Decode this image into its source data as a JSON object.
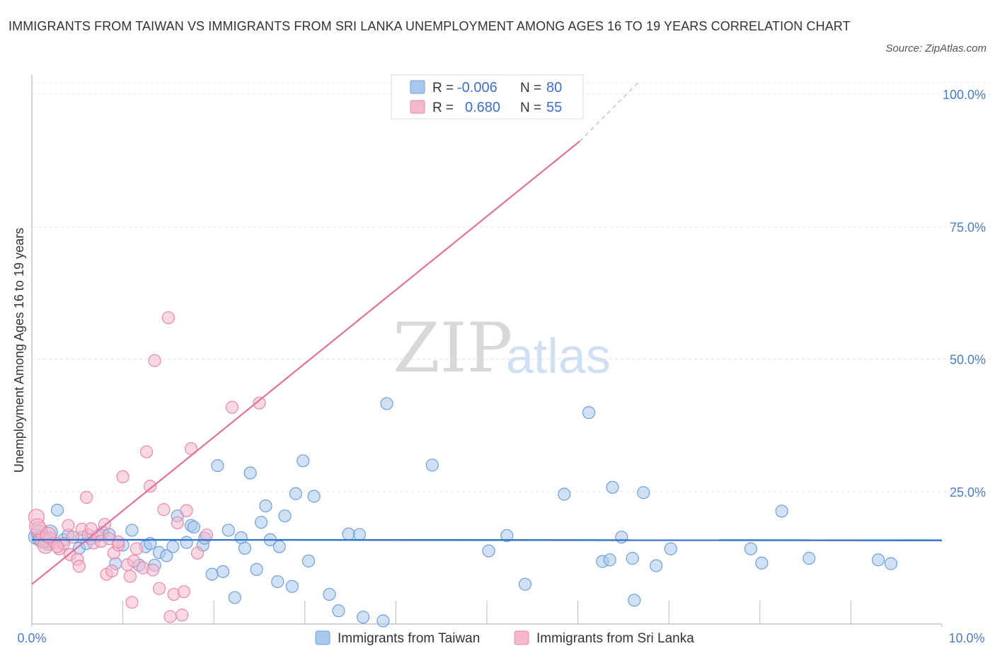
{
  "title": "IMMIGRANTS FROM TAIWAN VS IMMIGRANTS FROM SRI LANKA UNEMPLOYMENT AMONG AGES 16 TO 19 YEARS CORRELATION CHART",
  "source": "Source: ZipAtlas.com",
  "watermark": {
    "zip": "ZIP",
    "atlas": "atlas"
  },
  "colors": {
    "taiwan_fill": "#a9c8ee",
    "taiwan_stroke": "#6f9fd8",
    "taiwan_line": "#2f72c9",
    "srilanka_fill": "#f5b8cc",
    "srilanka_stroke": "#e888a8",
    "srilanka_line": "#e0709a",
    "grid": "#e3e3e3",
    "tick": "#4a7cc7"
  },
  "legend": {
    "rows": [
      {
        "r_label": "R =",
        "r_value": "-0.006",
        "n_label": "N =",
        "n_value": "80"
      },
      {
        "r_label": "R =",
        "r_value": "0.680",
        "n_label": "N =",
        "n_value": "55"
      }
    ]
  },
  "chart_data": {
    "type": "scatter",
    "title": "IMMIGRANTS FROM TAIWAN VS IMMIGRANTS FROM SRI LANKA UNEMPLOYMENT AMONG AGES 16 TO 19 YEARS CORRELATION CHART",
    "xlabel": "",
    "ylabel": "Unemployment Among Ages 16 to 19 years",
    "xlim": [
      0,
      10
    ],
    "ylim": [
      0,
      100
    ],
    "x_tick_labels": [
      "0.0%",
      "10.0%"
    ],
    "y_ticks": [
      25,
      50,
      75,
      100
    ],
    "y_tick_labels": [
      "25.0%",
      "50.0%",
      "75.0%",
      "100.0%"
    ],
    "grid": true,
    "legend_position": "top-center",
    "series": [
      {
        "name": "Immigrants from Taiwan",
        "R": -0.006,
        "N": 80,
        "trend": {
          "x0": 0,
          "y0": 15.9,
          "x1": 10,
          "y1": 15.8
        },
        "points": [
          [
            0.05,
            16.5
          ],
          [
            0.08,
            17.2
          ],
          [
            0.12,
            16.2
          ],
          [
            0.15,
            15.8
          ],
          [
            0.2,
            17.3
          ],
          [
            0.28,
            21.5
          ],
          [
            0.35,
            15.9
          ],
          [
            0.4,
            16.8
          ],
          [
            0.52,
            14.3
          ],
          [
            0.6,
            15.2
          ],
          [
            0.65,
            16.1
          ],
          [
            0.78,
            17.3
          ],
          [
            0.85,
            16.9
          ],
          [
            0.92,
            11.4
          ],
          [
            1.0,
            14.9
          ],
          [
            1.1,
            17.7
          ],
          [
            1.18,
            11.1
          ],
          [
            1.25,
            14.6
          ],
          [
            1.3,
            15.2
          ],
          [
            1.35,
            11.1
          ],
          [
            1.4,
            13.5
          ],
          [
            1.48,
            12.9
          ],
          [
            1.55,
            14.6
          ],
          [
            1.6,
            20.4
          ],
          [
            1.7,
            15.4
          ],
          [
            1.75,
            18.6
          ],
          [
            1.78,
            18.3
          ],
          [
            1.88,
            14.9
          ],
          [
            1.9,
            16.2
          ],
          [
            1.98,
            9.4
          ],
          [
            2.04,
            29.9
          ],
          [
            2.1,
            9.9
          ],
          [
            2.16,
            17.7
          ],
          [
            2.23,
            5.0
          ],
          [
            2.3,
            16.3
          ],
          [
            2.34,
            14.3
          ],
          [
            2.4,
            28.5
          ],
          [
            2.47,
            10.3
          ],
          [
            2.52,
            19.2
          ],
          [
            2.57,
            22.3
          ],
          [
            2.62,
            15.9
          ],
          [
            2.7,
            8.0
          ],
          [
            2.72,
            14.6
          ],
          [
            2.78,
            20.4
          ],
          [
            2.86,
            7.1
          ],
          [
            2.9,
            24.6
          ],
          [
            2.98,
            30.8
          ],
          [
            3.04,
            11.9
          ],
          [
            3.1,
            24.1
          ],
          [
            3.27,
            5.6
          ],
          [
            3.37,
            2.5
          ],
          [
            3.48,
            17.0
          ],
          [
            3.6,
            16.9
          ],
          [
            3.64,
            1.3
          ],
          [
            3.86,
            0.6
          ],
          [
            3.9,
            41.6
          ],
          [
            4.4,
            30.0
          ],
          [
            5.02,
            13.8
          ],
          [
            5.22,
            16.7
          ],
          [
            5.42,
            7.5
          ],
          [
            5.85,
            24.5
          ],
          [
            6.12,
            39.9
          ],
          [
            6.27,
            11.8
          ],
          [
            6.35,
            12.1
          ],
          [
            6.38,
            25.8
          ],
          [
            6.48,
            16.4
          ],
          [
            6.6,
            12.4
          ],
          [
            6.62,
            4.5
          ],
          [
            6.72,
            24.8
          ],
          [
            6.86,
            11.0
          ],
          [
            7.02,
            14.2
          ],
          [
            7.9,
            14.2
          ],
          [
            8.02,
            11.5
          ],
          [
            8.24,
            21.3
          ],
          [
            8.54,
            12.4
          ],
          [
            9.3,
            12.1
          ],
          [
            9.44,
            11.4
          ],
          [
            0.1,
            16.0
          ],
          [
            0.18,
            15.4
          ],
          [
            0.55,
            16.4
          ]
        ]
      },
      {
        "name": "Immigrants from Sri Lanka",
        "R": 0.68,
        "N": 55,
        "trend": {
          "x0": 0,
          "y0": 7.5,
          "x1": 6.02,
          "y1": 91.1,
          "dashed_to": {
            "x": 6.66,
            "y": 100
          }
        },
        "points": [
          [
            0.05,
            20.2
          ],
          [
            0.08,
            17.8
          ],
          [
            0.12,
            15.8
          ],
          [
            0.15,
            14.8
          ],
          [
            0.2,
            16.2
          ],
          [
            0.25,
            15.3
          ],
          [
            0.3,
            14.2
          ],
          [
            0.35,
            15.2
          ],
          [
            0.4,
            18.6
          ],
          [
            0.42,
            13.1
          ],
          [
            0.45,
            16.4
          ],
          [
            0.5,
            12.2
          ],
          [
            0.52,
            10.9
          ],
          [
            0.55,
            17.9
          ],
          [
            0.6,
            23.9
          ],
          [
            0.62,
            16.8
          ],
          [
            0.68,
            15.3
          ],
          [
            0.72,
            16.6
          ],
          [
            0.76,
            15.6
          ],
          [
            0.8,
            18.8
          ],
          [
            0.82,
            9.4
          ],
          [
            0.85,
            16.1
          ],
          [
            0.88,
            10.0
          ],
          [
            0.9,
            13.4
          ],
          [
            0.95,
            14.9
          ],
          [
            1.0,
            27.8
          ],
          [
            1.05,
            11.2
          ],
          [
            1.08,
            9.0
          ],
          [
            1.1,
            4.1
          ],
          [
            1.15,
            14.2
          ],
          [
            1.22,
            10.6
          ],
          [
            1.26,
            32.5
          ],
          [
            1.3,
            26.0
          ],
          [
            1.33,
            10.2
          ],
          [
            1.35,
            49.7
          ],
          [
            1.4,
            6.7
          ],
          [
            1.45,
            21.6
          ],
          [
            1.5,
            57.8
          ],
          [
            1.52,
            1.4
          ],
          [
            1.56,
            5.6
          ],
          [
            1.6,
            19.1
          ],
          [
            1.65,
            1.7
          ],
          [
            1.67,
            6.1
          ],
          [
            1.7,
            21.4
          ],
          [
            1.75,
            33.1
          ],
          [
            1.82,
            13.4
          ],
          [
            1.92,
            16.8
          ],
          [
            2.2,
            40.9
          ],
          [
            2.5,
            41.7
          ],
          [
            0.06,
            18.4
          ],
          [
            0.18,
            16.8
          ],
          [
            0.28,
            14.6
          ],
          [
            0.65,
            18.0
          ],
          [
            0.95,
            15.5
          ],
          [
            1.12,
            11.9
          ]
        ]
      }
    ]
  },
  "bottom_legend": [
    {
      "label": "Immigrants from Taiwan"
    },
    {
      "label": "Immigrants from Sri Lanka"
    }
  ]
}
